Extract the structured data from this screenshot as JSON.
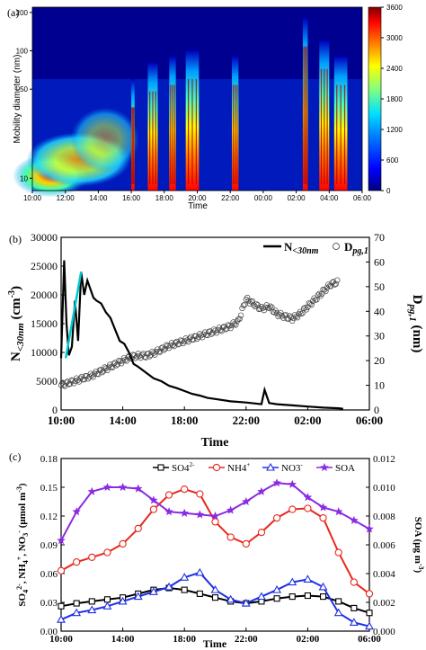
{
  "chart_data": [
    {
      "type": "heatmap",
      "panel_label": "(a)",
      "ylabel": "Mobility diameter (nm)",
      "xlabel": "Time",
      "xticks": [
        "10:00",
        "12:00",
        "14:00",
        "16:00",
        "18:00",
        "20:00",
        "22:00",
        "00:00",
        "02:00",
        "04:00",
        "06:00"
      ],
      "yticks": [
        "10",
        "50",
        "100",
        "200"
      ],
      "yscale": "log",
      "ylim": [
        8,
        220
      ],
      "colorbar": {
        "min": 0,
        "max": 3600,
        "ticks": [
          "0",
          "600",
          "1200",
          "1800",
          "2400",
          "3000",
          "3600"
        ]
      },
      "colors": [
        "#000080",
        "#0000ff",
        "#0080ff",
        "#00e0ff",
        "#80ff80",
        "#ffff00",
        "#ff8000",
        "#ff0000",
        "#800000"
      ]
    },
    {
      "type": "line",
      "panel_label": "(b)",
      "xlabel": "Time",
      "ylabel_left": "N<30nm (cm-3)",
      "ylabel_right": "Dpg,1 (nm)",
      "xticks": [
        "10:00",
        "14:00",
        "18:00",
        "22:00",
        "02:00",
        "06:00"
      ],
      "yticks_left": [
        "0",
        "5000",
        "10000",
        "15000",
        "20000",
        "25000",
        "30000"
      ],
      "yticks_right": [
        "0",
        "10",
        "20",
        "30",
        "40",
        "50",
        "60",
        "70"
      ],
      "ylim_left": [
        0,
        30000
      ],
      "ylim_right": [
        0,
        70
      ],
      "legend": [
        {
          "name": "N<30nm",
          "style": "line"
        },
        {
          "name": "Dpg,1",
          "style": "open-circle"
        }
      ],
      "series": [
        {
          "name": "N<30nm",
          "x": [
            0.0,
            0.2,
            0.35,
            0.5,
            0.7,
            0.9,
            1.1,
            1.3,
            1.5,
            1.7,
            1.9,
            2.1,
            2.3,
            2.6,
            2.9,
            3.2,
            3.5,
            3.8,
            4.1,
            4.4,
            4.7,
            5.0,
            5.5,
            6.0,
            6.5,
            7.0,
            7.5,
            8.0,
            8.5,
            9.0,
            9.5,
            10.0,
            11.0,
            12.0,
            13.0,
            13.2,
            13.5,
            14.0,
            15.0,
            16.0,
            17.0,
            18.0,
            18.3
          ],
          "y": [
            9000,
            26000,
            15000,
            9500,
            11000,
            19000,
            12000,
            24000,
            20000,
            22500,
            21000,
            19500,
            19000,
            18500,
            17000,
            16000,
            14000,
            12000,
            11500,
            10000,
            8000,
            7500,
            6500,
            5500,
            5000,
            4200,
            3800,
            3300,
            2800,
            2500,
            2100,
            1900,
            1500,
            1300,
            1000,
            3500,
            1200,
            1000,
            800,
            600,
            400,
            300,
            200
          ]
        },
        {
          "name": "Dpg,1",
          "x": [
            0.0,
            0.5,
            1.0,
            1.5,
            2.0,
            2.5,
            3.0,
            3.5,
            4.0,
            4.5,
            5.0,
            5.5,
            6.0,
            6.5,
            7.0,
            7.5,
            8.0,
            8.5,
            9.0,
            9.5,
            10.0,
            10.5,
            11.0,
            11.5,
            12.0,
            12.5,
            13.0,
            13.5,
            14.0,
            14.5,
            15.0,
            15.5,
            16.0,
            16.5,
            17.0,
            17.5,
            18.0
          ],
          "y": [
            10,
            11,
            12,
            13,
            14,
            15.5,
            17,
            18.5,
            20,
            21.5,
            22,
            22,
            23,
            24.5,
            26,
            27,
            28,
            29,
            30,
            31,
            32,
            33,
            34,
            36,
            45,
            43,
            41,
            42,
            39,
            38,
            37,
            39,
            42,
            45,
            48,
            51,
            52
          ]
        }
      ],
      "fit_line": {
        "color": "#00c8d0",
        "x": [
          0.3,
          1.3
        ],
        "y": [
          9000,
          24000
        ]
      }
    },
    {
      "type": "line",
      "panel_label": "(c)",
      "xlabel": "Time",
      "ylabel_left": "SO42-, NH4+, NO3- (μmol m-3)",
      "ylabel_right": "SOA (μg m-3)",
      "xticks": [
        "10:00",
        "14:00",
        "18:00",
        "22:00",
        "02:00",
        "06:00"
      ],
      "yticks_left": [
        "0.00",
        "0.03",
        "0.06",
        "0.09",
        "0.12",
        "0.15",
        "0.18"
      ],
      "yticks_right": [
        "0.000",
        "0.002",
        "0.004",
        "0.006",
        "0.008",
        "0.010",
        "0.012"
      ],
      "ylim_left": [
        0,
        0.18
      ],
      "ylim_right": [
        0,
        0.012
      ],
      "x": [
        0,
        1,
        2,
        3,
        4,
        5,
        6,
        7,
        8,
        9,
        10,
        11,
        12,
        13,
        14,
        15,
        16,
        17,
        18,
        19,
        20
      ],
      "series": [
        {
          "name": "SO42-",
          "label": "SO4",
          "sup": "2-",
          "marker": "square",
          "color": "#000000",
          "axis": "left",
          "values": [
            0.026,
            0.029,
            0.031,
            0.033,
            0.035,
            0.039,
            0.043,
            0.045,
            0.043,
            0.039,
            0.035,
            0.031,
            0.029,
            0.031,
            0.034,
            0.036,
            0.037,
            0.036,
            0.031,
            0.024,
            0.019
          ]
        },
        {
          "name": "NH4+",
          "label": "NH4",
          "sup": "+",
          "marker": "circle",
          "color": "#e8281e",
          "axis": "left",
          "values": [
            0.063,
            0.072,
            0.077,
            0.082,
            0.091,
            0.107,
            0.127,
            0.142,
            0.148,
            0.143,
            0.114,
            0.098,
            0.091,
            0.103,
            0.118,
            0.127,
            0.128,
            0.118,
            0.082,
            0.051,
            0.039
          ]
        },
        {
          "name": "NO3-",
          "label": "NO3",
          "sup": "-",
          "marker": "triangle",
          "color": "#1e2fe6",
          "axis": "left",
          "values": [
            0.012,
            0.019,
            0.022,
            0.026,
            0.031,
            0.036,
            0.041,
            0.046,
            0.056,
            0.061,
            0.043,
            0.033,
            0.029,
            0.036,
            0.043,
            0.051,
            0.054,
            0.046,
            0.019,
            0.009,
            0.005
          ]
        },
        {
          "name": "SOA",
          "label": "SOA",
          "sup": "",
          "marker": "star",
          "color": "#8a2be2",
          "axis": "right",
          "values": [
            0.0063,
            0.0083,
            0.0097,
            0.01,
            0.01,
            0.0099,
            0.0091,
            0.0083,
            0.0082,
            0.0081,
            0.008,
            0.0084,
            0.009,
            0.0097,
            0.0103,
            0.0102,
            0.0093,
            0.0086,
            0.0083,
            0.0077,
            0.0071
          ]
        }
      ]
    }
  ]
}
